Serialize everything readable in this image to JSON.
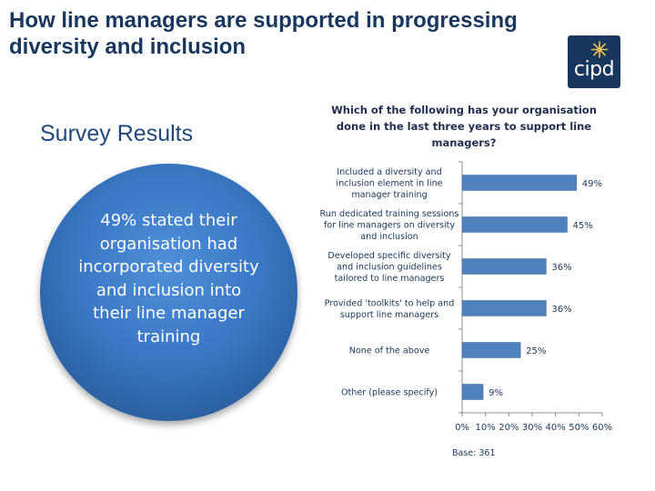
{
  "header": {
    "title": "How line managers are supported in progressing diversity and inclusion",
    "logo_text": "cipd"
  },
  "main": {
    "subtitle": "Survey Results",
    "callout": "49% stated their organisation had incorporated diversity and inclusion into their line manager training",
    "base_note": "Base: 361"
  },
  "colors": {
    "title": "#17375e",
    "bar": "#4f81bd",
    "circle": "#3a78c6"
  },
  "chart_data": {
    "type": "bar",
    "orientation": "horizontal",
    "title": "Which of the following has your organisation done in the last three years to support line managers?",
    "categories": [
      "Included a diversity and inclusion element in line manager training",
      "Run dedicated training sessions for line managers on diversity and inclusion",
      "Developed specific diversity and inclusion guidelines tailored to line managers",
      "Provided 'toolkits' to help and support line managers",
      "None of the above",
      "Other (please specify)"
    ],
    "category_lines": [
      [
        "Included a diversity and",
        "inclusion element in line",
        "manager training"
      ],
      [
        "Run dedicated training sessions",
        "for line managers on diversity",
        "and inclusion"
      ],
      [
        "Developed specific diversity",
        "and inclusion guidelines",
        "tailored to line managers"
      ],
      [
        "Provided 'toolkits' to help and",
        "support line managers"
      ],
      [
        "None of the above"
      ],
      [
        "Other (please specify)"
      ]
    ],
    "values": [
      49,
      45,
      36,
      36,
      25,
      9
    ],
    "data_labels": [
      "49%",
      "45%",
      "36%",
      "36%",
      "25%",
      "9%"
    ],
    "x_ticks": [
      0,
      10,
      20,
      30,
      40,
      50,
      60
    ],
    "x_tick_labels": [
      "0%",
      "10%",
      "20%",
      "30%",
      "40%",
      "50%",
      "60%"
    ],
    "xlim": [
      0,
      60
    ],
    "xlabel": "",
    "ylabel": "",
    "grid": false,
    "legend": "none"
  }
}
